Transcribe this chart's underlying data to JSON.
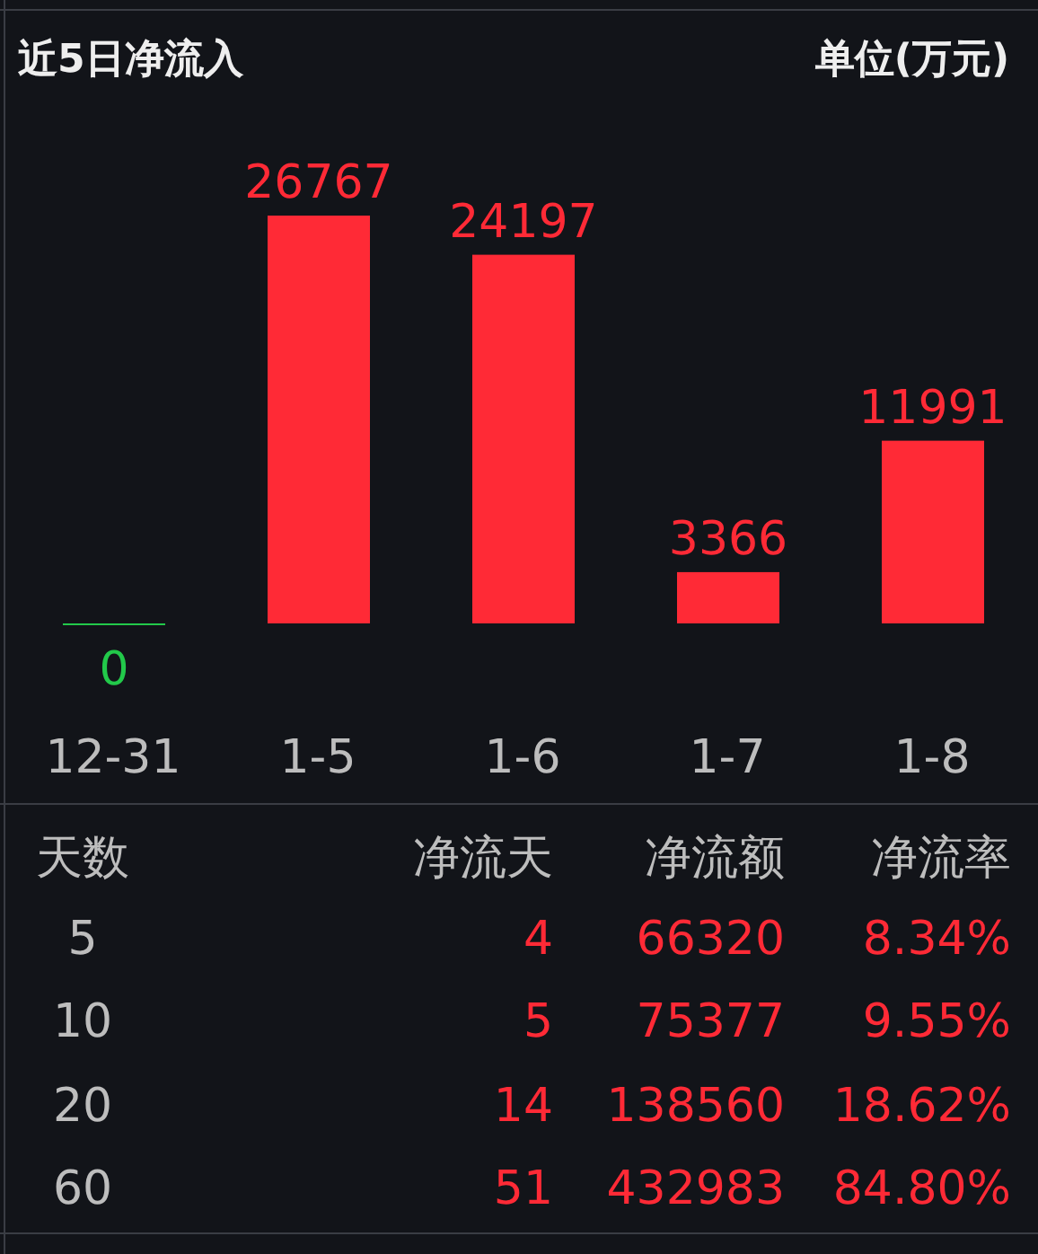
{
  "chart_data": [
    {
      "type": "bar",
      "title": "近5日净流入",
      "subtitle": "单位(万元)",
      "categories": [
        "12-31",
        "1-5",
        "1-6",
        "1-7",
        "1-8"
      ],
      "values": [
        0,
        26767,
        24197,
        3366,
        11991
      ],
      "colors": [
        "#22c94a",
        "#ff2a36",
        "#ff2a36",
        "#ff2a36",
        "#ff2a36"
      ],
      "data_labels": true
    },
    {
      "type": "other",
      "annotations": [
        "天数",
        "净流天",
        "净流额",
        "净流率",
        "5",
        "4",
        "66320",
        "8.34%",
        "10",
        "5",
        "75377",
        "9.55%",
        "20",
        "14",
        "138560",
        "18.62%",
        "60",
        "51",
        "432983",
        "84.80%"
      ]
    }
  ]
}
